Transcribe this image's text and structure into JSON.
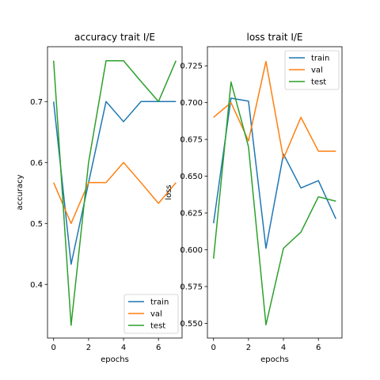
{
  "chart_data": [
    {
      "type": "line",
      "title": "accuracy trait I/E",
      "xlabel": "epochs",
      "ylabel": "accuracy",
      "x": [
        0,
        1,
        2,
        3,
        4,
        5,
        6,
        7
      ],
      "xlim": [
        -0.35,
        7.35
      ],
      "ylim": [
        0.312,
        0.79
      ],
      "xticks": [
        0,
        2,
        4,
        6
      ],
      "yticks": [
        0.4,
        0.5,
        0.6,
        0.7
      ],
      "ytick_labels": [
        "0.4",
        "0.5",
        "0.6",
        "0.7"
      ],
      "legend_position": "lower right",
      "series": [
        {
          "name": "train",
          "color": "#1f77b4",
          "values": [
            0.7,
            0.433,
            0.567,
            0.7,
            0.667,
            0.7,
            0.7,
            0.7
          ]
        },
        {
          "name": "val",
          "color": "#ff7f0e",
          "values": [
            0.567,
            0.5,
            0.567,
            0.567,
            0.6,
            0.567,
            0.533,
            0.567
          ]
        },
        {
          "name": "test",
          "color": "#2ca02c",
          "values": [
            0.767,
            0.333,
            0.6,
            0.767,
            0.767,
            0.733,
            0.7,
            0.767
          ]
        }
      ]
    },
    {
      "type": "line",
      "title": "loss trait I/E",
      "xlabel": "epochs",
      "ylabel": "loss",
      "x": [
        0,
        1,
        2,
        3,
        4,
        5,
        6,
        7
      ],
      "xlim": [
        -0.35,
        7.35
      ],
      "ylim": [
        0.54,
        0.738
      ],
      "xticks": [
        0,
        2,
        4,
        6
      ],
      "yticks": [
        0.55,
        0.575,
        0.6,
        0.625,
        0.65,
        0.675,
        0.7,
        0.725
      ],
      "ytick_labels": [
        "0.550",
        "0.575",
        "0.600",
        "0.625",
        "0.650",
        "0.675",
        "0.700",
        "0.725"
      ],
      "legend_position": "upper right",
      "series": [
        {
          "name": "train",
          "color": "#1f77b4",
          "values": [
            0.618,
            0.703,
            0.701,
            0.601,
            0.665,
            0.642,
            0.647,
            0.621
          ]
        },
        {
          "name": "val",
          "color": "#ff7f0e",
          "values": [
            0.69,
            0.7,
            0.674,
            0.728,
            0.662,
            0.69,
            0.667,
            0.667
          ]
        },
        {
          "name": "test",
          "color": "#2ca02c",
          "values": [
            0.594,
            0.714,
            0.67,
            0.549,
            0.601,
            0.612,
            0.636,
            0.633
          ]
        }
      ]
    }
  ]
}
